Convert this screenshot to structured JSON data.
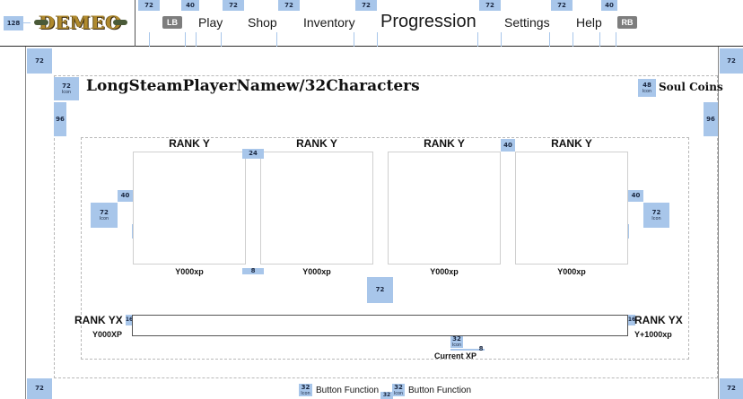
{
  "header": {
    "logo_text": "DEMEO",
    "left_bumper": "LB",
    "right_bumper": "RB",
    "nav": [
      "Play",
      "Shop",
      "Inventory",
      "Progression",
      "Settings",
      "Help"
    ],
    "active_tab": "Progression"
  },
  "spacing_labels": {
    "s128": "128",
    "s72": "72",
    "s48": "48",
    "s40": "40",
    "s32": "32",
    "s24": "24",
    "s16": "16",
    "s8": "8",
    "s96": "96",
    "icon": "Icon"
  },
  "player": {
    "name": "LongSteamPlayerNamew/32Characters",
    "currency_label": "Soul Coins"
  },
  "ranks": [
    {
      "title": "RANK Y",
      "xp": "Y000xp"
    },
    {
      "title": "RANK Y",
      "xp": "Y000xp"
    },
    {
      "title": "RANK Y",
      "xp": "Y000xp"
    },
    {
      "title": "RANK Y",
      "xp": "Y000xp"
    }
  ],
  "progress": {
    "current_rank": "RANK YX",
    "current_xp": "Y000XP",
    "next_rank": "RANK YX",
    "next_xp": "Y+1000xp",
    "current_label": "Current XP"
  },
  "footer": {
    "button_1": "Button Function",
    "button_2": "Button Function"
  }
}
